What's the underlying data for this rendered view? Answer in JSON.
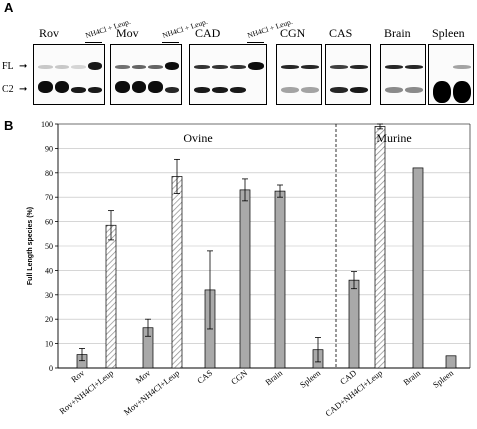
{
  "panel_a": {
    "letter": "A",
    "markers": {
      "fl": "FL",
      "c2": "C2"
    },
    "blots": [
      {
        "label": "Rov",
        "treatment": "NH4Cl + Leup.",
        "bands": [
          {
            "fl": 0.2,
            "c2": 0.95
          },
          {
            "fl": 0.2,
            "c2": 0.95
          },
          {
            "fl": 0.15,
            "c2": 0.9
          },
          {
            "fl": 0.9,
            "c2": 0.9
          }
        ]
      },
      {
        "label": "Mov",
        "treatment": "NH4Cl + Leup.",
        "bands": [
          {
            "fl": 0.55,
            "c2": 0.95
          },
          {
            "fl": 0.6,
            "c2": 0.95
          },
          {
            "fl": 0.6,
            "c2": 0.95
          },
          {
            "fl": 0.95,
            "c2": 0.85
          }
        ]
      },
      {
        "label": "CAD",
        "treatment": "NH4Cl + Leup.",
        "bands": [
          {
            "fl": 0.8,
            "c2": 0.9
          },
          {
            "fl": 0.8,
            "c2": 0.9
          },
          {
            "fl": 0.8,
            "c2": 0.9
          },
          {
            "fl": 0.95,
            "c2": 0.0
          }
        ]
      },
      {
        "label": "CGN",
        "treatment": "",
        "bands": [
          {
            "fl": 0.85,
            "c2": 0.35
          },
          {
            "fl": 0.85,
            "c2": 0.35
          }
        ]
      },
      {
        "label": "CAS",
        "treatment": "",
        "bands": [
          {
            "fl": 0.75,
            "c2": 0.85
          },
          {
            "fl": 0.85,
            "c2": 0.9
          }
        ]
      },
      {
        "label": "Brain",
        "treatment": "",
        "bands": [
          {
            "fl": 0.85,
            "c2": 0.45
          },
          {
            "fl": 0.85,
            "c2": 0.45
          }
        ]
      },
      {
        "label": "Spleen",
        "treatment": "",
        "bands": [
          {
            "fl": 0.05,
            "c2": 1.0
          },
          {
            "fl": 0.35,
            "c2": 1.0
          }
        ]
      }
    ]
  },
  "panel_b": {
    "letter": "B"
  },
  "chart_data": {
    "type": "bar",
    "ylabel": "Full Length species (%)",
    "ylim": [
      0,
      100
    ],
    "yticks": [
      0,
      10,
      20,
      30,
      40,
      50,
      60,
      70,
      80,
      90,
      100
    ],
    "grid": true,
    "group_labels": {
      "left": "Ovine",
      "right": "Murine"
    },
    "categories": [
      "Rov",
      "Rov+NH4Cl+Leup",
      "Mov",
      "Mov+NH4Cl+Leup",
      "CAS",
      "CGN",
      "Brain",
      "Spleen",
      "CAD",
      "CAD+NH4Cl+Leup",
      "Brain",
      "Spleen"
    ],
    "values": [
      5.5,
      58.5,
      16.5,
      78.5,
      32,
      73,
      72.5,
      7.5,
      36,
      99,
      82,
      5
    ],
    "errors": [
      2.5,
      6,
      3.5,
      7,
      16,
      4.5,
      2.5,
      5,
      3.5,
      1,
      0,
      0
    ],
    "hatched": [
      false,
      true,
      false,
      true,
      false,
      false,
      false,
      false,
      false,
      true,
      false,
      false
    ],
    "colors": {
      "solid": "#a9a9a9",
      "hatch": "#8a8a8a",
      "grid": "#bdbdbd"
    }
  }
}
